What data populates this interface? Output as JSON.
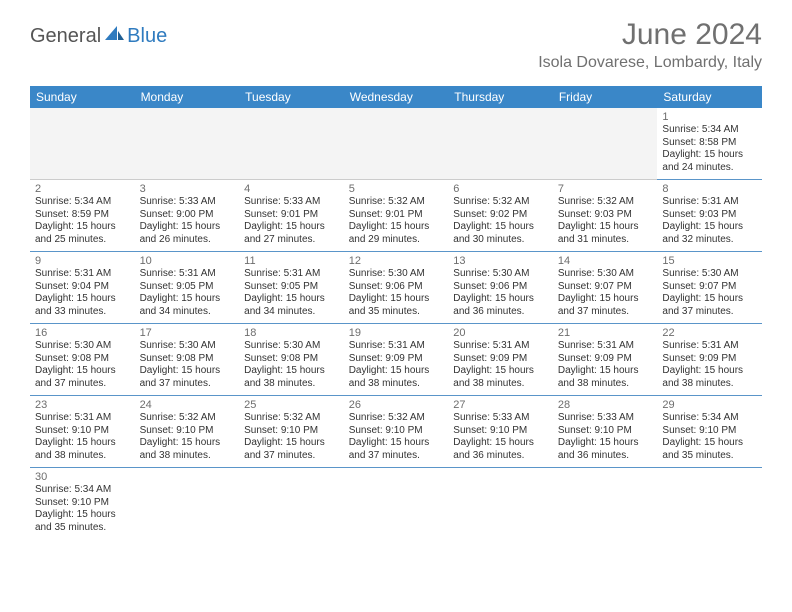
{
  "brand": {
    "general": "General",
    "blue": "Blue"
  },
  "title": "June 2024",
  "location": "Isola Dovarese, Lombardy, Italy",
  "colors": {
    "header_bar": "#3a87c8",
    "cell_border": "#5a95c9",
    "title_text": "#707070",
    "brand_blue": "#2f7bbf",
    "blank_bg": "#f4f4f4"
  },
  "weekdays": [
    "Sunday",
    "Monday",
    "Tuesday",
    "Wednesday",
    "Thursday",
    "Friday",
    "Saturday"
  ],
  "leading_blanks": 6,
  "days": [
    {
      "n": "1",
      "sunrise": "Sunrise: 5:34 AM",
      "sunset": "Sunset: 8:58 PM",
      "d1": "Daylight: 15 hours",
      "d2": "and 24 minutes."
    },
    {
      "n": "2",
      "sunrise": "Sunrise: 5:34 AM",
      "sunset": "Sunset: 8:59 PM",
      "d1": "Daylight: 15 hours",
      "d2": "and 25 minutes."
    },
    {
      "n": "3",
      "sunrise": "Sunrise: 5:33 AM",
      "sunset": "Sunset: 9:00 PM",
      "d1": "Daylight: 15 hours",
      "d2": "and 26 minutes."
    },
    {
      "n": "4",
      "sunrise": "Sunrise: 5:33 AM",
      "sunset": "Sunset: 9:01 PM",
      "d1": "Daylight: 15 hours",
      "d2": "and 27 minutes."
    },
    {
      "n": "5",
      "sunrise": "Sunrise: 5:32 AM",
      "sunset": "Sunset: 9:01 PM",
      "d1": "Daylight: 15 hours",
      "d2": "and 29 minutes."
    },
    {
      "n": "6",
      "sunrise": "Sunrise: 5:32 AM",
      "sunset": "Sunset: 9:02 PM",
      "d1": "Daylight: 15 hours",
      "d2": "and 30 minutes."
    },
    {
      "n": "7",
      "sunrise": "Sunrise: 5:32 AM",
      "sunset": "Sunset: 9:03 PM",
      "d1": "Daylight: 15 hours",
      "d2": "and 31 minutes."
    },
    {
      "n": "8",
      "sunrise": "Sunrise: 5:31 AM",
      "sunset": "Sunset: 9:03 PM",
      "d1": "Daylight: 15 hours",
      "d2": "and 32 minutes."
    },
    {
      "n": "9",
      "sunrise": "Sunrise: 5:31 AM",
      "sunset": "Sunset: 9:04 PM",
      "d1": "Daylight: 15 hours",
      "d2": "and 33 minutes."
    },
    {
      "n": "10",
      "sunrise": "Sunrise: 5:31 AM",
      "sunset": "Sunset: 9:05 PM",
      "d1": "Daylight: 15 hours",
      "d2": "and 34 minutes."
    },
    {
      "n": "11",
      "sunrise": "Sunrise: 5:31 AM",
      "sunset": "Sunset: 9:05 PM",
      "d1": "Daylight: 15 hours",
      "d2": "and 34 minutes."
    },
    {
      "n": "12",
      "sunrise": "Sunrise: 5:30 AM",
      "sunset": "Sunset: 9:06 PM",
      "d1": "Daylight: 15 hours",
      "d2": "and 35 minutes."
    },
    {
      "n": "13",
      "sunrise": "Sunrise: 5:30 AM",
      "sunset": "Sunset: 9:06 PM",
      "d1": "Daylight: 15 hours",
      "d2": "and 36 minutes."
    },
    {
      "n": "14",
      "sunrise": "Sunrise: 5:30 AM",
      "sunset": "Sunset: 9:07 PM",
      "d1": "Daylight: 15 hours",
      "d2": "and 37 minutes."
    },
    {
      "n": "15",
      "sunrise": "Sunrise: 5:30 AM",
      "sunset": "Sunset: 9:07 PM",
      "d1": "Daylight: 15 hours",
      "d2": "and 37 minutes."
    },
    {
      "n": "16",
      "sunrise": "Sunrise: 5:30 AM",
      "sunset": "Sunset: 9:08 PM",
      "d1": "Daylight: 15 hours",
      "d2": "and 37 minutes."
    },
    {
      "n": "17",
      "sunrise": "Sunrise: 5:30 AM",
      "sunset": "Sunset: 9:08 PM",
      "d1": "Daylight: 15 hours",
      "d2": "and 37 minutes."
    },
    {
      "n": "18",
      "sunrise": "Sunrise: 5:30 AM",
      "sunset": "Sunset: 9:08 PM",
      "d1": "Daylight: 15 hours",
      "d2": "and 38 minutes."
    },
    {
      "n": "19",
      "sunrise": "Sunrise: 5:31 AM",
      "sunset": "Sunset: 9:09 PM",
      "d1": "Daylight: 15 hours",
      "d2": "and 38 minutes."
    },
    {
      "n": "20",
      "sunrise": "Sunrise: 5:31 AM",
      "sunset": "Sunset: 9:09 PM",
      "d1": "Daylight: 15 hours",
      "d2": "and 38 minutes."
    },
    {
      "n": "21",
      "sunrise": "Sunrise: 5:31 AM",
      "sunset": "Sunset: 9:09 PM",
      "d1": "Daylight: 15 hours",
      "d2": "and 38 minutes."
    },
    {
      "n": "22",
      "sunrise": "Sunrise: 5:31 AM",
      "sunset": "Sunset: 9:09 PM",
      "d1": "Daylight: 15 hours",
      "d2": "and 38 minutes."
    },
    {
      "n": "23",
      "sunrise": "Sunrise: 5:31 AM",
      "sunset": "Sunset: 9:10 PM",
      "d1": "Daylight: 15 hours",
      "d2": "and 38 minutes."
    },
    {
      "n": "24",
      "sunrise": "Sunrise: 5:32 AM",
      "sunset": "Sunset: 9:10 PM",
      "d1": "Daylight: 15 hours",
      "d2": "and 38 minutes."
    },
    {
      "n": "25",
      "sunrise": "Sunrise: 5:32 AM",
      "sunset": "Sunset: 9:10 PM",
      "d1": "Daylight: 15 hours",
      "d2": "and 37 minutes."
    },
    {
      "n": "26",
      "sunrise": "Sunrise: 5:32 AM",
      "sunset": "Sunset: 9:10 PM",
      "d1": "Daylight: 15 hours",
      "d2": "and 37 minutes."
    },
    {
      "n": "27",
      "sunrise": "Sunrise: 5:33 AM",
      "sunset": "Sunset: 9:10 PM",
      "d1": "Daylight: 15 hours",
      "d2": "and 36 minutes."
    },
    {
      "n": "28",
      "sunrise": "Sunrise: 5:33 AM",
      "sunset": "Sunset: 9:10 PM",
      "d1": "Daylight: 15 hours",
      "d2": "and 36 minutes."
    },
    {
      "n": "29",
      "sunrise": "Sunrise: 5:34 AM",
      "sunset": "Sunset: 9:10 PM",
      "d1": "Daylight: 15 hours",
      "d2": "and 35 minutes."
    },
    {
      "n": "30",
      "sunrise": "Sunrise: 5:34 AM",
      "sunset": "Sunset: 9:10 PM",
      "d1": "Daylight: 15 hours",
      "d2": "and 35 minutes."
    }
  ]
}
